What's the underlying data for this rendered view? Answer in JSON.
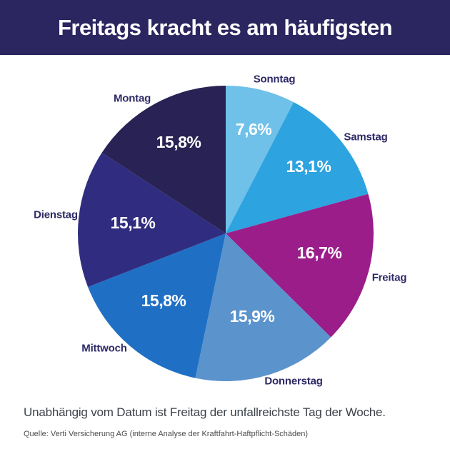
{
  "header": {
    "title": "Freitags kracht es am häufigsten",
    "background_color": "#2b2560",
    "text_color": "#ffffff"
  },
  "chart_data": {
    "type": "pie",
    "title": "Freitags kracht es am häufigsten",
    "unit": "%",
    "start_angle_deg": 0,
    "direction": "clockwise",
    "legend_position": "labels-around-pie",
    "slices": [
      {
        "category": "Sonntag",
        "value": 7.6,
        "label": "7,6%",
        "color": "#6fc1e9"
      },
      {
        "category": "Samstag",
        "value": 13.1,
        "label": "13,1%",
        "color": "#2da3e0"
      },
      {
        "category": "Freitag",
        "value": 16.7,
        "label": "16,7%",
        "color": "#9b1d8a"
      },
      {
        "category": "Donnerstag",
        "value": 15.9,
        "label": "15,9%",
        "color": "#5b93cd"
      },
      {
        "category": "Mittwoch",
        "value": 15.8,
        "label": "15,8%",
        "color": "#1f70c5"
      },
      {
        "category": "Dienstag",
        "value": 15.1,
        "label": "15,1%",
        "color": "#302d80"
      },
      {
        "category": "Montag",
        "value": 15.8,
        "label": "15,8%",
        "color": "#292254"
      }
    ],
    "category_label_color": "#2e2a66",
    "value_label_color": "#ffffff"
  },
  "footer": {
    "summary": "Unabhängig vom Datum ist Freitag der unfallreichste Tag der Woche.",
    "source": "Quelle: Verti Versicherung AG (interne Analyse der Kraftfahrt-Haftpflicht-Schäden)"
  }
}
